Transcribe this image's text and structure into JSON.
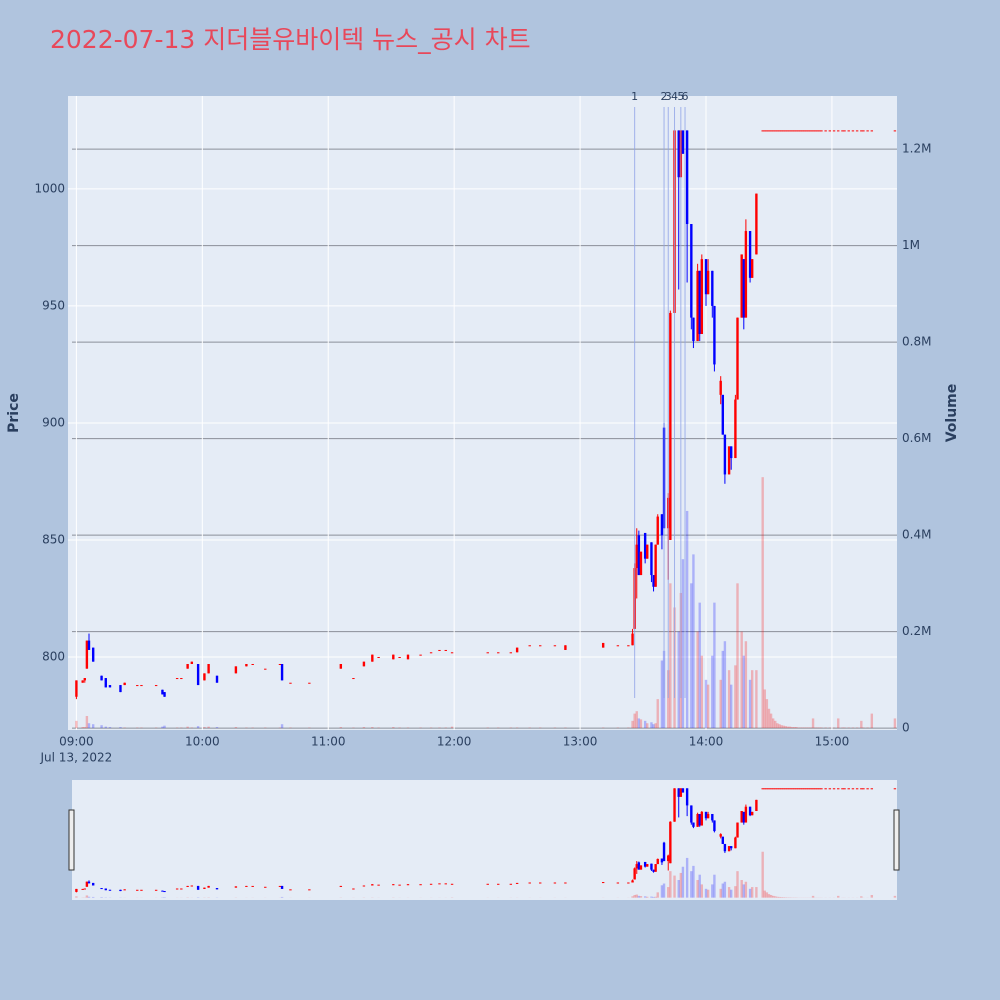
{
  "chart_data": {
    "type": "candlestick",
    "title": "2022-07-13 지더블유바이텍 뉴스_공시 차트",
    "y_title": "Price",
    "y2_title": "Volume",
    "x_date_label": "Jul 13, 2022",
    "increasing_color": "#ff0000",
    "decreasing_color": "#0000ff",
    "xlim": [
      "08:56",
      "15:31"
    ],
    "xticks": [
      "09:00",
      "10:00",
      "11:00",
      "12:00",
      "13:00",
      "14:00",
      "15:00"
    ],
    "ylim": [
      768.8,
      1039.7
    ],
    "yticks": [
      800,
      850,
      900,
      950,
      1000
    ],
    "y2lim": [
      -4000,
      1310000
    ],
    "y2ticks": [
      0,
      {
        "value": 200000,
        "label": "0.2M"
      },
      {
        "value": 400000,
        "label": "0.4M"
      },
      {
        "value": 600000,
        "label": "0.6M"
      },
      {
        "value": 800000,
        "label": "0.8M"
      },
      {
        "value": 1000000,
        "label": "1M"
      },
      {
        "value": 1200000,
        "label": "1.2M"
      }
    ],
    "annotations": [
      {
        "x": "13:26",
        "text": "1"
      },
      {
        "x": "13:40",
        "text": "2"
      },
      {
        "x": "13:42",
        "text": "3"
      },
      {
        "x": "13:45",
        "text": "4"
      },
      {
        "x": "13:48",
        "text": "5"
      },
      {
        "x": "13:50",
        "text": "6"
      }
    ],
    "x": [
      "09:00",
      "09:03",
      "09:04",
      "09:05",
      "09:06",
      "09:08",
      "09:12",
      "09:14",
      "09:16",
      "09:21",
      "09:23",
      "09:29",
      "09:31",
      "09:38",
      "09:41",
      "09:42",
      "09:48",
      "09:50",
      "09:53",
      "09:55",
      "09:58",
      "10:01",
      "10:03",
      "10:07",
      "10:16",
      "10:21",
      "10:24",
      "10:30",
      "10:37",
      "10:38",
      "10:42",
      "10:51",
      "11:06",
      "11:12",
      "11:17",
      "11:21",
      "11:24",
      "11:31",
      "11:34",
      "11:38",
      "11:44",
      "11:49",
      "11:53",
      "11:56",
      "11:59",
      "12:16",
      "12:21",
      "12:27",
      "12:30",
      "12:36",
      "12:41",
      "12:48",
      "12:53",
      "13:11",
      "13:18",
      "13:23",
      "13:25",
      "13:26",
      "13:27",
      "13:28",
      "13:29",
      "13:31",
      "13:32",
      "13:34",
      "13:35",
      "13:36",
      "13:37",
      "13:39",
      "13:40",
      "13:42",
      "13:43",
      "13:45",
      "13:47",
      "13:48",
      "13:49",
      "13:51",
      "13:53",
      "13:54",
      "13:56",
      "13:57",
      "13:58",
      "14:00",
      "14:01",
      "14:03",
      "14:04",
      "14:07",
      "14:08",
      "14:09",
      "14:11",
      "14:12",
      "14:14",
      "14:15",
      "14:17",
      "14:18",
      "14:19",
      "14:21",
      "14:22",
      "14:24",
      "14:27",
      "14:28",
      "14:29",
      "14:30",
      "14:31",
      "14:32",
      "14:33",
      "14:34",
      "14:35",
      "14:36",
      "14:37",
      "14:38",
      "14:39",
      "14:40",
      "14:41",
      "14:42",
      "14:43",
      "14:44",
      "14:45",
      "14:46",
      "14:47",
      "14:48",
      "14:49",
      "14:50",
      "14:51",
      "14:52",
      "14:53",
      "14:54",
      "14:55",
      "14:57",
      "14:59",
      "15:01",
      "15:03",
      "15:05",
      "15:06",
      "15:08",
      "15:10",
      "15:12",
      "15:14",
      "15:15",
      "15:17",
      "15:19",
      "15:30"
    ],
    "open": [
      783,
      789,
      790,
      795,
      807,
      804,
      792,
      791,
      788,
      788,
      788,
      788,
      788,
      788,
      786,
      785,
      791,
      791,
      795,
      797,
      797,
      790,
      793,
      792,
      793,
      796,
      797,
      795,
      797,
      797,
      789,
      789,
      795,
      791,
      796,
      798,
      800,
      799,
      800,
      799,
      801,
      802,
      803,
      803,
      802,
      802,
      802,
      802,
      802,
      805,
      805,
      805,
      803,
      804,
      805,
      805,
      805,
      812,
      838,
      852,
      835,
      853,
      842,
      849,
      835,
      830,
      848,
      861,
      898,
      855,
      850,
      947,
      1025,
      1005,
      1025,
      1025,
      985,
      945,
      935,
      965,
      938,
      970,
      955,
      965,
      950,
      912,
      912,
      895,
      878,
      890,
      885,
      910,
      945,
      970,
      945,
      982,
      962,
      972,
      1025,
      1025,
      1025,
      1025,
      1025,
      1025,
      1025,
      1025,
      1025,
      1025,
      1025,
      1025,
      1025,
      1025,
      1025,
      1025,
      1025,
      1025,
      1025,
      1025,
      1025,
      1025,
      1025,
      1025,
      1025,
      1025,
      1025,
      1025,
      1025,
      1025,
      1025,
      1025,
      1025,
      1025,
      1025,
      1025,
      1025,
      1025,
      1025,
      1025,
      1025,
      1025,
      1025
    ],
    "high": [
      790,
      790,
      791,
      807,
      810,
      804,
      792,
      791,
      788,
      788,
      789,
      788,
      788,
      788,
      786,
      785,
      791,
      791,
      797,
      798,
      797,
      793,
      797,
      792,
      796,
      797,
      797,
      795,
      797,
      797,
      789,
      789,
      797,
      791,
      798,
      801,
      800,
      801,
      800,
      801,
      801,
      802,
      803,
      803,
      802,
      802,
      802,
      802,
      804,
      805,
      805,
      805,
      805,
      806,
      805,
      805,
      812,
      840,
      855,
      854,
      845,
      853,
      848,
      849,
      835,
      848,
      861,
      861,
      900,
      870,
      948,
      1025,
      1025,
      1025,
      1025,
      1025,
      985,
      945,
      968,
      965,
      972,
      970,
      970,
      965,
      950,
      920,
      912,
      895,
      890,
      890,
      912,
      945,
      972,
      970,
      987,
      982,
      970,
      998,
      1025,
      1025,
      1025,
      1025,
      1025,
      1025,
      1025,
      1025,
      1025,
      1025,
      1025,
      1025,
      1025,
      1025,
      1025,
      1025,
      1025,
      1025,
      1025,
      1025,
      1025,
      1025,
      1025,
      1025,
      1025,
      1025,
      1025,
      1025,
      1025,
      1025,
      1025,
      1025,
      1025,
      1025,
      1025,
      1025,
      1025,
      1025,
      1025,
      1025,
      1025,
      1025,
      1025
    ],
    "low": [
      782,
      789,
      789,
      795,
      803,
      798,
      790,
      787,
      787,
      785,
      788,
      788,
      788,
      788,
      784,
      783,
      791,
      791,
      795,
      797,
      788,
      790,
      793,
      789,
      793,
      796,
      797,
      795,
      797,
      790,
      789,
      789,
      795,
      791,
      796,
      798,
      800,
      799,
      800,
      799,
      801,
      802,
      803,
      803,
      802,
      802,
      802,
      802,
      802,
      805,
      805,
      805,
      803,
      804,
      805,
      805,
      805,
      812,
      825,
      835,
      835,
      840,
      842,
      832,
      828,
      830,
      848,
      846,
      855,
      833,
      850,
      947,
      957,
      1005,
      1015,
      960,
      940,
      932,
      935,
      935,
      938,
      950,
      955,
      945,
      922,
      908,
      895,
      874,
      878,
      880,
      885,
      910,
      945,
      940,
      945,
      960,
      962,
      972,
      1025,
      1025,
      1025,
      1025,
      1025,
      1025,
      1025,
      1025,
      1025,
      1025,
      1025,
      1025,
      1025,
      1025,
      1025,
      1025,
      1025,
      1025,
      1025,
      1025,
      1025,
      1025,
      1025,
      1025,
      1025,
      1025,
      1025,
      1025,
      1025,
      1025,
      1025,
      1025,
      1025,
      1025,
      1025,
      1025,
      1025,
      1025,
      1025,
      1025,
      1025,
      1025,
      1025
    ],
    "close": [
      790,
      790,
      791,
      807,
      803,
      798,
      790,
      787,
      787,
      785,
      789,
      788,
      788,
      788,
      784,
      783,
      791,
      791,
      797,
      798,
      788,
      793,
      797,
      789,
      796,
      797,
      797,
      795,
      797,
      790,
      789,
      789,
      797,
      791,
      798,
      801,
      800,
      801,
      800,
      801,
      801,
      802,
      803,
      803,
      802,
      802,
      802,
      802,
      804,
      805,
      805,
      805,
      805,
      806,
      805,
      805,
      810,
      838,
      848,
      835,
      845,
      842,
      848,
      835,
      830,
      848,
      860,
      852,
      855,
      868,
      947,
      1025,
      1005,
      1025,
      1015,
      985,
      945,
      935,
      965,
      938,
      970,
      955,
      965,
      950,
      925,
      918,
      895,
      878,
      890,
      885,
      910,
      945,
      972,
      945,
      982,
      962,
      970,
      998,
      1025,
      1025,
      1025,
      1025,
      1025,
      1025,
      1025,
      1025,
      1025,
      1025,
      1025,
      1025,
      1025,
      1025,
      1025,
      1025,
      1025,
      1025,
      1025,
      1025,
      1025,
      1025,
      1025,
      1025,
      1025,
      1025,
      1025,
      1025,
      1025,
      1025,
      1025,
      1025,
      1025,
      1025,
      1025,
      1025,
      1025,
      1025,
      1025,
      1025,
      1025,
      1025,
      1025
    ],
    "volume": [
      15000,
      2000,
      2000,
      25000,
      10000,
      8000,
      6000,
      3000,
      2000,
      2000,
      1000,
      1000,
      1000,
      1000,
      3000,
      5000,
      1000,
      1000,
      3000,
      1000,
      4000,
      2000,
      3000,
      2000,
      2000,
      1000,
      1000,
      1000,
      1000,
      8000,
      1000,
      1000,
      2000,
      1000,
      2000,
      2000,
      1000,
      2000,
      1000,
      1000,
      1000,
      1000,
      1000,
      1000,
      3000,
      1000,
      1000,
      1000,
      1000,
      1000,
      1000,
      1000,
      1000,
      1000,
      1000,
      1000,
      15000,
      30000,
      35000,
      20000,
      18000,
      15000,
      10000,
      12000,
      8000,
      10000,
      60000,
      140000,
      160000,
      120000,
      300000,
      250000,
      200000,
      280000,
      350000,
      450000,
      300000,
      360000,
      200000,
      260000,
      150000,
      100000,
      90000,
      150000,
      260000,
      100000,
      160000,
      180000,
      120000,
      90000,
      130000,
      300000,
      200000,
      150000,
      180000,
      100000,
      120000,
      120000,
      520000,
      80000,
      60000,
      40000,
      30000,
      20000,
      15000,
      10000,
      8000,
      6000,
      5000,
      4000,
      3000,
      3000,
      2000,
      2000,
      2000,
      1000,
      1000,
      1000,
      1000,
      1000,
      1000,
      1000,
      20000,
      1000,
      1000,
      1000,
      1000,
      1000,
      1000,
      1000,
      20000,
      1000,
      1000,
      1000,
      1000,
      1000,
      15000,
      1000,
      1000,
      30000,
      20000
    ]
  }
}
